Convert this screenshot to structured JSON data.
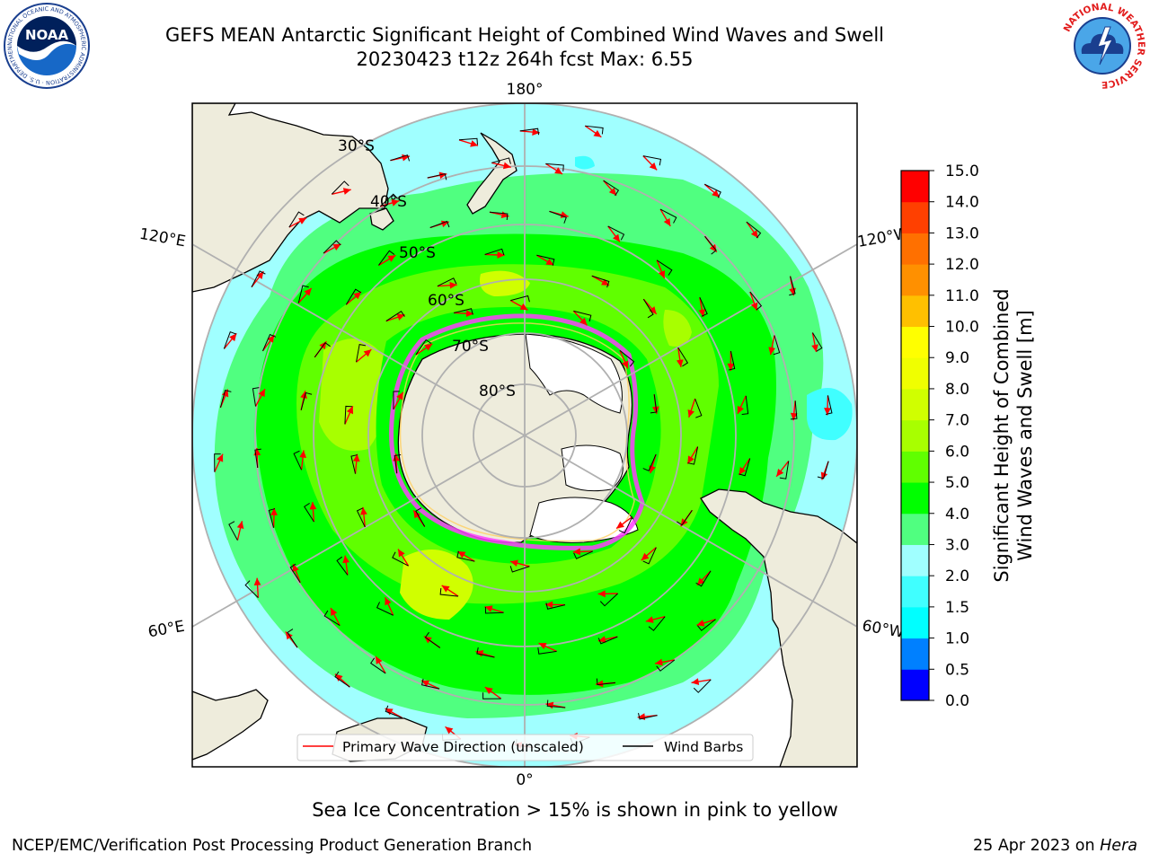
{
  "title": {
    "line1": "GEFS MEAN Antarctic Significant Height of Combined Wind Waves and Swell",
    "line2": "20230423 t12z 264h fcst   Max: 6.55"
  },
  "logos": {
    "noaa_text": "NOAA",
    "noaa_ring_text": "NATIONAL OCEANIC AND ATMOSPHERIC ADMINISTRATION · U.S. DEPARTMENT OF COMMERCE",
    "nws_ring_text": "NATIONAL WEATHER SERVICE"
  },
  "map": {
    "projection": "south-polar-stereographic",
    "longitude_labels": {
      "top": "180°",
      "bottom": "0°",
      "upper_left": "120°E",
      "upper_right": "120°W",
      "lower_left": "60°E",
      "lower_right": "60°W"
    },
    "latitude_labels": [
      "30°S",
      "40°S",
      "50°S",
      "60°S",
      "70°S",
      "80°S"
    ],
    "legend": {
      "wave_direction": "Primary Wave Direction (unscaled)",
      "wind_barbs": "Wind Barbs"
    },
    "colors": {
      "land": "#eeecdc",
      "ice_shelf": "#ffffff",
      "sea_ice": "#ff40ff",
      "wave_arrow": "#ff0000",
      "barb": "#000000"
    }
  },
  "colorbar": {
    "label_line1": "Significant Height of Combined",
    "label_line2": "Wind Waves and Swell [m]",
    "ticks": [
      "0.0",
      "0.5",
      "1.0",
      "1.5",
      "2.0",
      "3.0",
      "4.0",
      "5.0",
      "6.0",
      "7.0",
      "8.0",
      "9.0",
      "10.0",
      "11.0",
      "12.0",
      "13.0",
      "14.0",
      "15.0"
    ],
    "colors": [
      "#0000ff",
      "#0080ff",
      "#00ffff",
      "#40ffff",
      "#a0ffff",
      "#50ff80",
      "#00ff00",
      "#60ff00",
      "#a8ff00",
      "#d0ff00",
      "#f0ff00",
      "#ffff00",
      "#ffc000",
      "#ff9000",
      "#ff7000",
      "#ff4000",
      "#ff0000"
    ]
  },
  "footer": {
    "sea_ice_note": "Sea Ice Concentration > 15% is shown in pink to yellow",
    "credit": "NCEP/EMC/Verification Post Processing Product Generation Branch",
    "date": "25 Apr 2023 on ",
    "machine": "Hera"
  }
}
